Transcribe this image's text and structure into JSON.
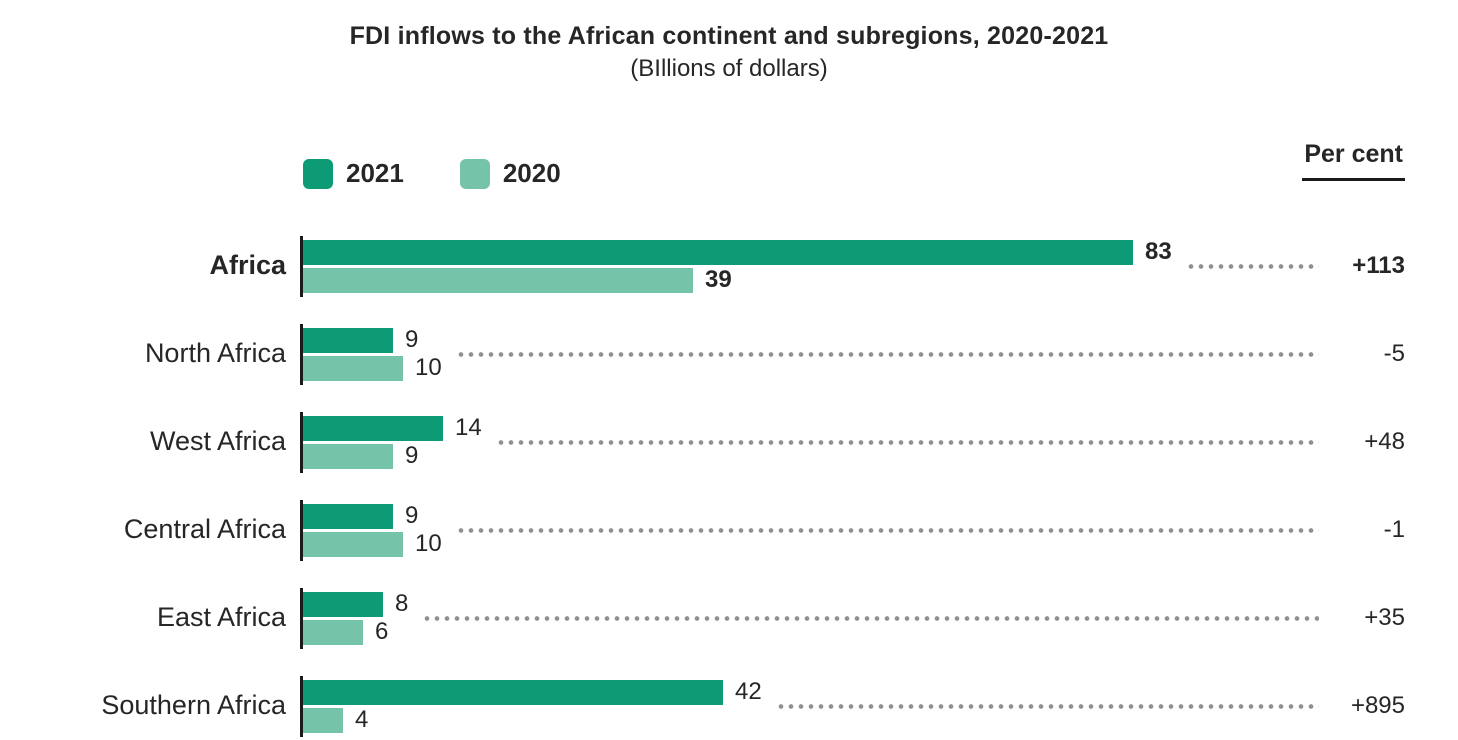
{
  "header": {
    "title": "FDI inflows to the African continent and subregions, 2020-2021",
    "subtitle": "(BIllions of dollars)"
  },
  "colors": {
    "series_2021": "#0c9b75",
    "series_2020": "#75c4a9",
    "axis_line": "#1a1a1a",
    "leader_dots": "#8f8f8f",
    "text": "#262626"
  },
  "chart_data": {
    "type": "bar",
    "orientation": "horizontal",
    "title": "FDI inflows to the African continent and subregions, 2020-2021",
    "subtitle": "(BIllions of dollars)",
    "value_unit": "Billions of dollars",
    "categories": [
      "Africa",
      "North Africa",
      "West Africa",
      "Central Africa",
      "East Africa",
      "Southern Africa"
    ],
    "series": [
      {
        "name": "2021",
        "color": "#0c9b75",
        "values": [
          83,
          9,
          14,
          9,
          8,
          42
        ]
      },
      {
        "name": "2020",
        "color": "#75c4a9",
        "values": [
          39,
          10,
          9,
          10,
          6,
          4
        ]
      }
    ],
    "percent_column_header": "Per cent",
    "percent_change_labels": [
      "+113",
      "-5",
      "+48",
      "-1",
      "+35",
      "+895"
    ],
    "emphasized_category": "Africa",
    "xlim": [
      0,
      90
    ],
    "grid": false,
    "legend_position": "top-left",
    "value_labels_shown": true
  }
}
